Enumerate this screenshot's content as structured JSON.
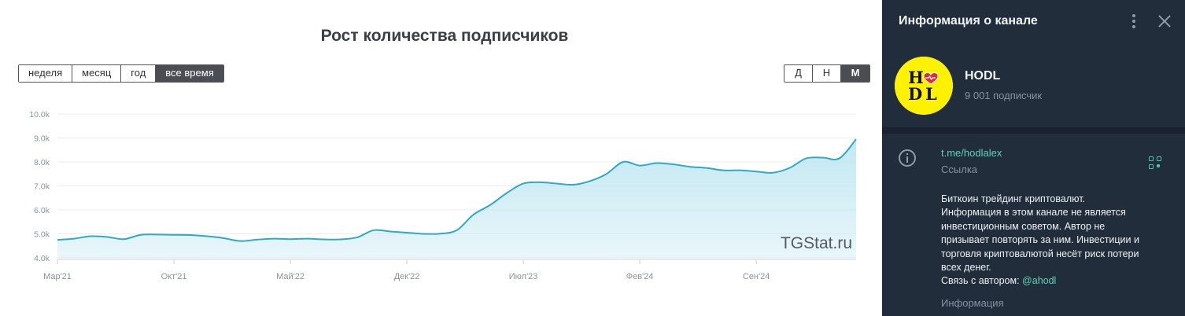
{
  "chart": {
    "title": "Рост количества подписчиков",
    "range_buttons": [
      "неделя",
      "месяц",
      "год",
      "все время"
    ],
    "range_active": 3,
    "period_buttons": [
      "Д",
      "Н",
      "М"
    ],
    "period_active": 2,
    "watermark": "TGStat.ru",
    "line_color": "#2fa8c9",
    "fill_color": "#bfe6f1"
  },
  "chart_data": {
    "type": "area",
    "y_tick_labels": [
      "4.0k",
      "5.0k",
      "6.0k",
      "7.0k",
      "8.0k",
      "9.0k",
      "10.0k"
    ],
    "y_ticks": [
      4000,
      5000,
      6000,
      7000,
      8000,
      9000,
      10000
    ],
    "ylim": [
      4000,
      10000
    ],
    "x_tick_labels": [
      "Мар'21",
      "Окт'21",
      "Май'22",
      "Дек'22",
      "Июл'23",
      "Фев'24",
      "Сен'24"
    ],
    "x_ticks": [
      "2021-03",
      "2021-10",
      "2022-05",
      "2022-12",
      "2023-07",
      "2024-02",
      "2024-09"
    ],
    "grid": true,
    "series": [
      {
        "x": [
          "2021-03",
          "2021-04",
          "2021-05",
          "2021-06",
          "2021-07",
          "2021-08",
          "2021-09",
          "2021-10",
          "2021-11",
          "2021-12",
          "2022-01",
          "2022-02",
          "2022-03",
          "2022-04",
          "2022-05",
          "2022-06",
          "2022-07",
          "2022-08",
          "2022-09",
          "2022-10",
          "2022-11",
          "2022-12",
          "2023-01",
          "2023-02",
          "2023-03",
          "2023-04",
          "2023-05",
          "2023-06",
          "2023-07",
          "2023-08",
          "2023-09",
          "2023-10",
          "2023-11",
          "2023-12",
          "2024-01",
          "2024-02",
          "2024-03",
          "2024-04",
          "2024-05",
          "2024-06",
          "2024-07",
          "2024-08",
          "2024-09",
          "2024-10",
          "2024-11",
          "2024-12",
          "2025-01",
          "2025-02",
          "2025-03"
        ],
        "y": [
          4750,
          4800,
          4900,
          4870,
          4780,
          4960,
          4970,
          4960,
          4950,
          4900,
          4820,
          4700,
          4760,
          4800,
          4780,
          4800,
          4770,
          4770,
          4850,
          5150,
          5100,
          5050,
          5000,
          5010,
          5150,
          5800,
          6200,
          6700,
          7100,
          7150,
          7100,
          7050,
          7200,
          7500,
          8000,
          7850,
          7950,
          7900,
          7800,
          7750,
          7650,
          7650,
          7600,
          7550,
          7750,
          8150,
          8180,
          8150,
          8950
        ]
      }
    ]
  },
  "panel": {
    "title": "Информация о канале",
    "channel_name": "HODL",
    "subscribers": "9 001 подписчик",
    "avatar_letters": [
      "H",
      "D",
      "L"
    ],
    "link": "t.me/hodlalex",
    "link_label": "Ссылка",
    "description_lines": [
      "Биткоин трейдинг криптовалют.",
      "Информация в этом канале не является",
      "инвестиционным советом. Автор не",
      "призывает повторять за ним. Инвестиции и",
      "торговля криптовалютой несёт риск потери",
      "всех денег."
    ],
    "contact_prefix": "Связь с автором: ",
    "contact_mention": "@ahodl",
    "description_label": "Информация",
    "bg_color": "#212d3b",
    "accent_color": "#5fd1b7"
  }
}
